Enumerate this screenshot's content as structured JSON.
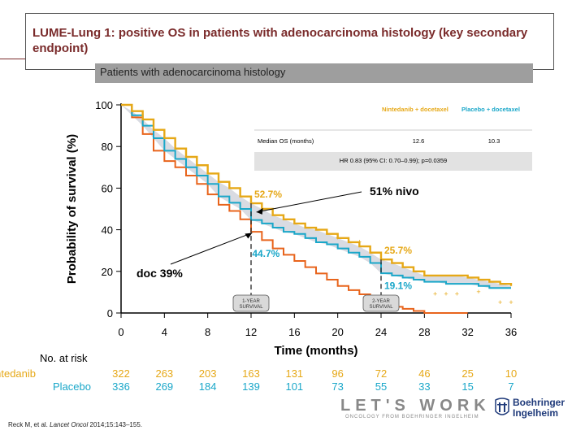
{
  "slide": {
    "title": "LUME-Lung 1: positive OS in patients with adenocarcinoma histology (key secondary endpoint)",
    "subheader": "Patients with adenocarcinoma histology",
    "reference_prefix": "Reck M, et al. ",
    "reference_journal": "Lancet Oncol",
    "reference_suffix": " 2014;15:143–155.",
    "brand_text": "LET'S WORK",
    "brand_subtext": "ONCOLOGY FROM BOEHRINGER INGELHEIM",
    "company_line1": "Boehringer",
    "company_line2": "Ingelheim"
  },
  "chart_data": {
    "type": "line",
    "xlabel": "Time (months)",
    "ylabel": "Probability of survival (%)",
    "xlim": [
      0,
      36
    ],
    "ylim": [
      0,
      100
    ],
    "x_ticks": [
      0,
      4,
      8,
      12,
      16,
      20,
      24,
      28,
      32,
      36
    ],
    "y_ticks": [
      0,
      20,
      40,
      60,
      80,
      100
    ],
    "colors": {
      "nintedanib": "#e6a817",
      "placebo": "#1aa7c9",
      "doc_annotation_curve": "#e8641c",
      "band": "#c9ccd6"
    },
    "series": [
      {
        "name": "Nintedanib + docetaxel",
        "x": [
          0,
          1,
          2,
          3,
          4,
          5,
          6,
          7,
          8,
          9,
          10,
          11,
          12,
          13,
          14,
          15,
          16,
          17,
          18,
          19,
          20,
          21,
          22,
          23,
          24,
          25,
          26,
          27,
          28,
          29,
          30,
          31,
          32,
          33,
          34,
          35,
          36
        ],
        "values": [
          100,
          97,
          93,
          88,
          84,
          79,
          75,
          71,
          67,
          63,
          60,
          56,
          52.7,
          50,
          47,
          45,
          43,
          41,
          40,
          38,
          36,
          34,
          32,
          29,
          25.7,
          24,
          22,
          20,
          18,
          18,
          18,
          18,
          17,
          16,
          15,
          14,
          13
        ]
      },
      {
        "name": "Placebo + docetaxel",
        "x": [
          0,
          1,
          2,
          3,
          4,
          5,
          6,
          7,
          8,
          9,
          10,
          11,
          12,
          13,
          14,
          15,
          16,
          17,
          18,
          19,
          20,
          21,
          22,
          23,
          24,
          25,
          26,
          27,
          28,
          29,
          30,
          31,
          32,
          33,
          34,
          35,
          36
        ],
        "values": [
          100,
          95,
          90,
          84,
          78,
          74,
          70,
          66,
          62,
          56,
          53,
          50,
          44.7,
          43,
          41,
          39,
          38,
          36,
          34,
          33,
          31,
          29,
          27,
          24,
          19.1,
          18,
          17,
          16,
          15,
          15,
          14,
          14,
          14,
          13,
          12,
          12,
          12
        ]
      },
      {
        "name": "doc 39%",
        "x": [
          0,
          1,
          2,
          3,
          4,
          5,
          6,
          7,
          8,
          9,
          10,
          11,
          12,
          13,
          14,
          15,
          16,
          17,
          18,
          19,
          20,
          21,
          22,
          23,
          24,
          25,
          26,
          27,
          28,
          29,
          30,
          31,
          32
        ],
        "values": [
          100,
          94,
          86,
          78,
          73,
          70,
          66,
          62,
          57,
          52,
          49,
          45,
          39,
          35,
          31,
          28,
          25,
          22,
          19,
          16,
          13,
          11,
          9,
          7,
          5,
          3,
          2,
          1,
          0,
          0,
          0,
          0,
          0
        ]
      }
    ],
    "median_table": {
      "header_nintedanib": "Nintedanib + docetaxel",
      "header_placebo": "Placebo + docetaxel",
      "row_label": "Median OS (months)",
      "nintedanib_value": "12.6",
      "placebo_value": "10.3",
      "hr_text": "HR 0.83 (95% CI: 0.70–0.99); p=0.0359"
    },
    "annotations": {
      "nint_12": "52.7%",
      "plac_12": "44.7%",
      "nint_24": "25.7%",
      "plac_24": "19.1%",
      "nivo": "51% nivo",
      "doc": "doc 39%",
      "one_year_line1": "1-YEAR",
      "one_year_line2": "SURVIVAL",
      "two_year_line1": "2-YEAR",
      "two_year_line2": "SURVIVAL"
    },
    "risk_table": {
      "header": "No. at risk",
      "nintedanib_label": "Nintedanib",
      "placebo_label": "Placebo",
      "nintedanib": [
        "322",
        "263",
        "203",
        "163",
        "131",
        "96",
        "72",
        "46",
        "25",
        "10"
      ],
      "placebo": [
        "336",
        "269",
        "184",
        "139",
        "101",
        "73",
        "55",
        "33",
        "15",
        "7"
      ]
    }
  }
}
